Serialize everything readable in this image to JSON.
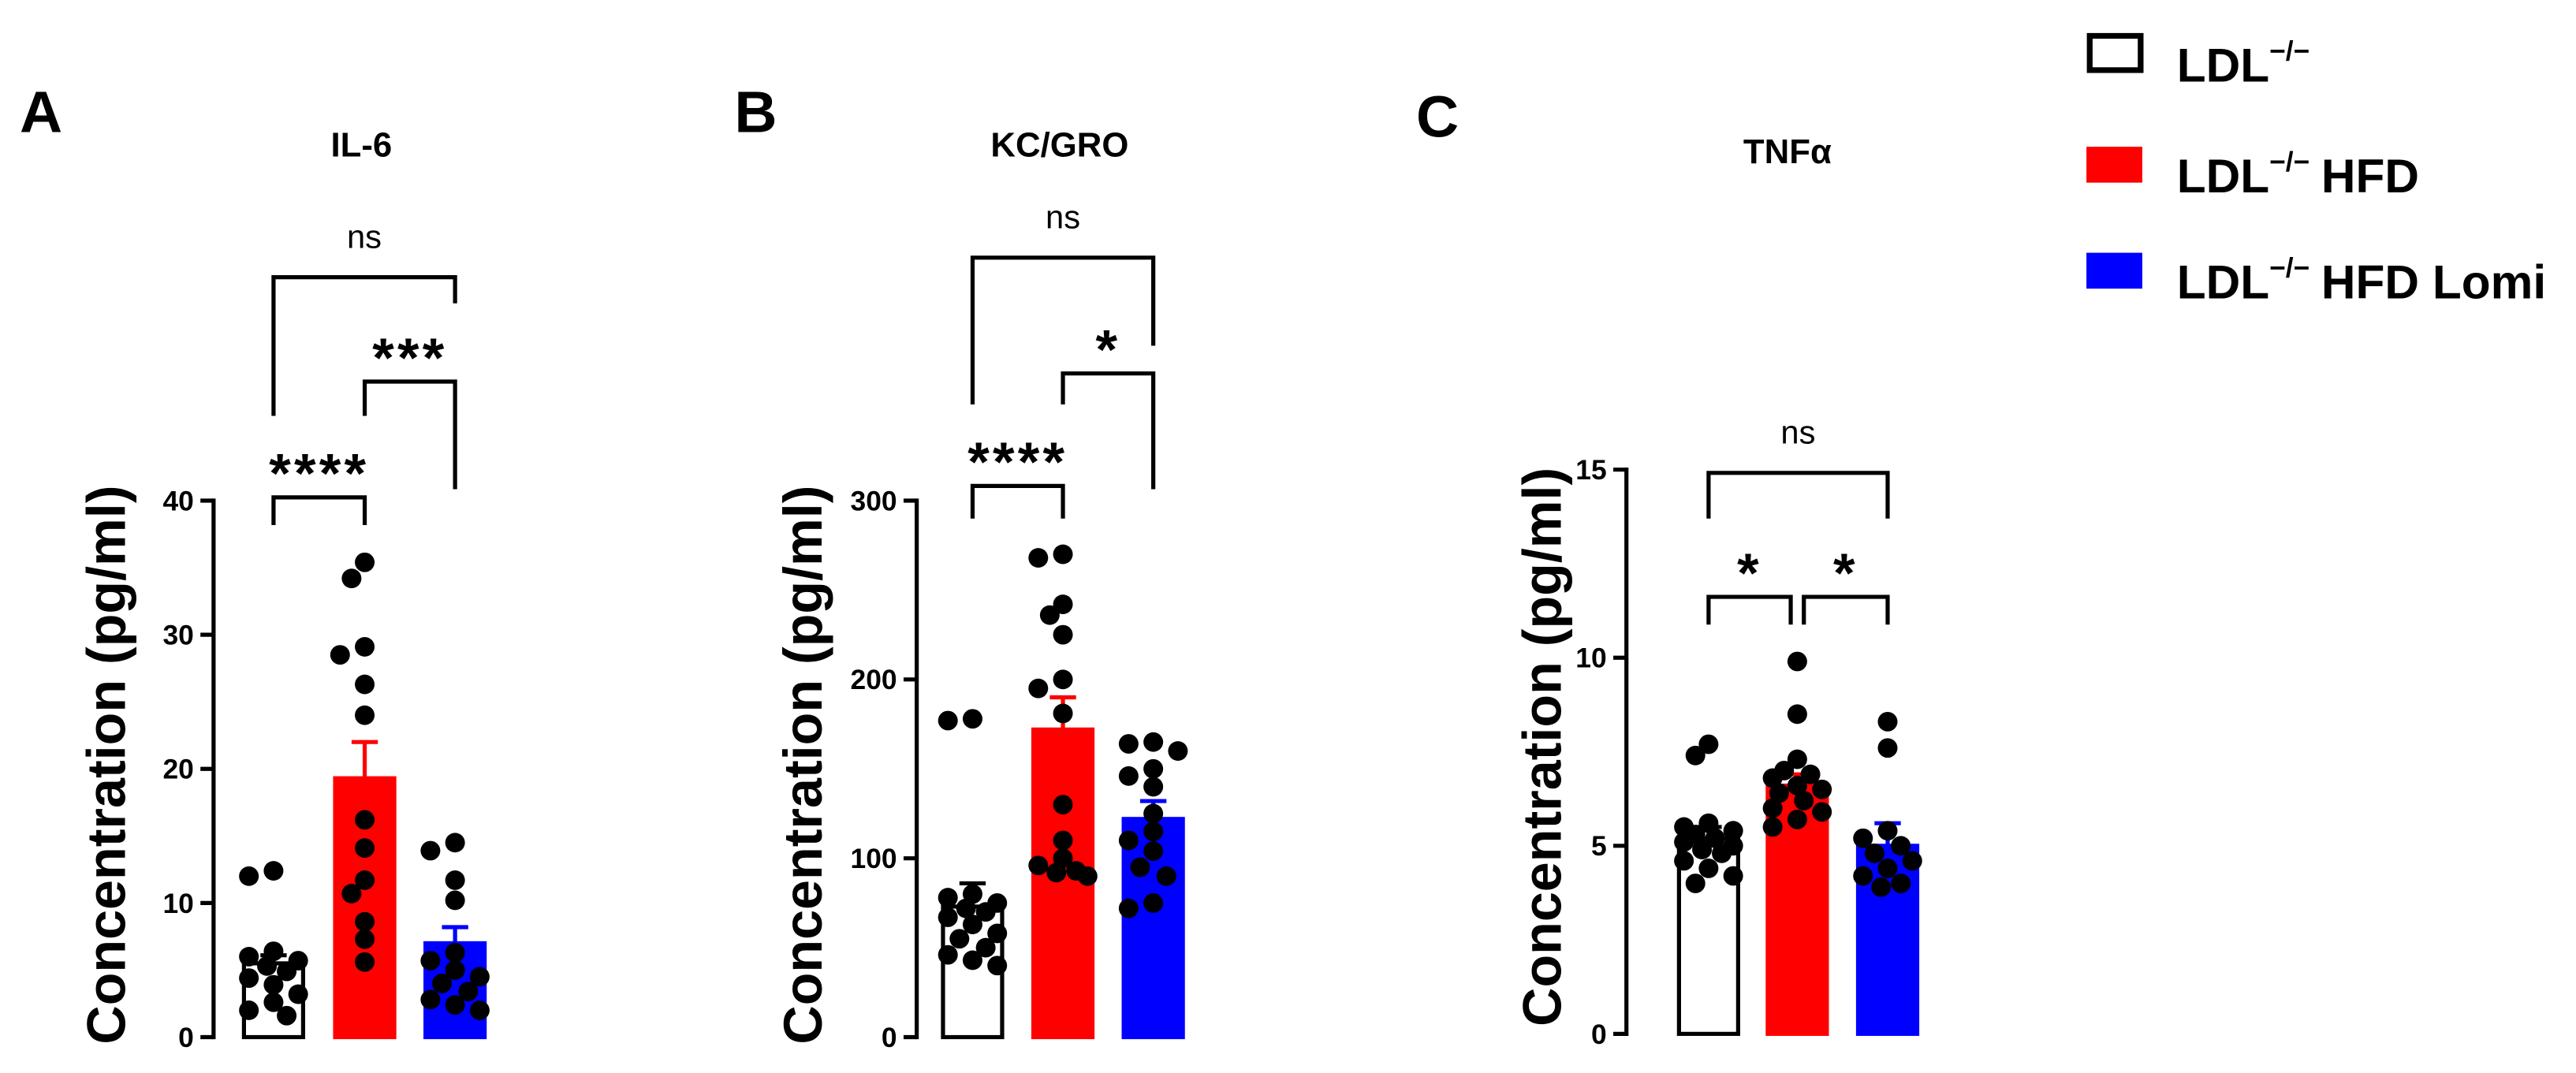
{
  "legend": [
    {
      "base": "LDL",
      "sup": "−/−",
      "color": "#ffffff"
    },
    {
      "base": "LDL",
      "sup": "−/−",
      "suffix": "HFD",
      "color": "#ff0000"
    },
    {
      "base": "LDL",
      "sup": "−/−",
      "suffix": "HFD Lomi",
      "color": "#0000ff"
    }
  ],
  "chart_data": [
    {
      "panel_label": "A",
      "type": "bar",
      "title": "IL-6",
      "ylabel": "Concentration (pg/ml)",
      "ylim": [
        0,
        40
      ],
      "yticks": [
        0,
        10,
        20,
        30,
        40
      ],
      "series": [
        {
          "group": 0,
          "fill": "#ffffff",
          "edge": "#000000",
          "mean": 5.5,
          "err": 0.6,
          "points": [
            12.4,
            12.0,
            6.4,
            6.0,
            5.7,
            5.3,
            4.9,
            4.4,
            3.9,
            3.2,
            2.6,
            2.0,
            1.6
          ]
        },
        {
          "group": 1,
          "fill": "#ff0000",
          "edge": "#ff0000",
          "mean": 19.3,
          "err": 2.7,
          "points": [
            35.4,
            34.2,
            29.1,
            28.5,
            26.3,
            24.0,
            16.2,
            14.1,
            11.7,
            10.7,
            8.6,
            7.3,
            5.6
          ]
        },
        {
          "group": 2,
          "fill": "#0000ff",
          "edge": "#0000ff",
          "mean": 7.0,
          "err": 1.2,
          "points": [
            14.5,
            13.9,
            11.7,
            10.2,
            6.3,
            5.7,
            5.0,
            4.5,
            4.0,
            3.4,
            2.8,
            2.4,
            2.0
          ]
        }
      ],
      "comparisons": [
        {
          "between": [
            0,
            2
          ],
          "label": "ns"
        },
        {
          "between": [
            1,
            2
          ],
          "label": "***"
        },
        {
          "between": [
            0,
            1
          ],
          "label": "****"
        }
      ]
    },
    {
      "panel_label": "B",
      "type": "bar",
      "title": "KC/GRO",
      "ylabel": "Concentration (pg/ml)",
      "ylim": [
        0,
        300
      ],
      "yticks": [
        0,
        100,
        200,
        300
      ],
      "series": [
        {
          "group": 0,
          "fill": "#ffffff",
          "edge": "#000000",
          "mean": 73,
          "err": 13,
          "points": [
            178,
            177,
            80,
            78,
            75,
            72,
            70,
            67,
            63,
            58,
            55,
            50,
            46,
            43,
            40
          ]
        },
        {
          "group": 1,
          "fill": "#ff0000",
          "edge": "#ff0000",
          "mean": 172,
          "err": 18,
          "points": [
            270,
            268,
            242,
            236,
            225,
            200,
            195,
            181,
            130,
            110,
            100,
            96,
            93,
            92,
            90
          ]
        },
        {
          "group": 2,
          "fill": "#0000ff",
          "edge": "#0000ff",
          "mean": 122,
          "err": 10,
          "points": [
            165,
            164,
            160,
            150,
            146,
            140,
            125,
            115,
            110,
            104,
            95,
            90,
            75,
            72
          ]
        }
      ],
      "comparisons": [
        {
          "between": [
            0,
            2
          ],
          "label": "ns"
        },
        {
          "between": [
            1,
            2
          ],
          "label": "*"
        },
        {
          "between": [
            0,
            1
          ],
          "label": "****"
        }
      ]
    },
    {
      "panel_label": "C",
      "type": "bar",
      "title": "TNFα",
      "ylabel": "Concentration (pg/ml)",
      "ylim": [
        0,
        15
      ],
      "yticks": [
        0,
        5,
        10,
        15
      ],
      "series": [
        {
          "group": 0,
          "fill": "#ffffff",
          "edge": "#000000",
          "mean": 5.2,
          "err": 0.3,
          "points": [
            7.7,
            7.4,
            5.6,
            5.5,
            5.4,
            5.3,
            5.2,
            5.1,
            5.0,
            4.9,
            4.8,
            4.6,
            4.4,
            4.2,
            4.0
          ]
        },
        {
          "group": 1,
          "fill": "#ff0000",
          "edge": "#ff0000",
          "mean": 6.6,
          "err": 0.3,
          "points": [
            9.9,
            8.5,
            7.3,
            7.0,
            6.9,
            6.8,
            6.6,
            6.5,
            6.4,
            6.2,
            6.0,
            5.9,
            5.7,
            5.5
          ]
        },
        {
          "group": 2,
          "fill": "#0000ff",
          "edge": "#0000ff",
          "mean": 5.0,
          "err": 0.6,
          "points": [
            8.3,
            7.6,
            5.4,
            5.2,
            5.0,
            4.8,
            4.6,
            4.4,
            4.2,
            4.0,
            3.9
          ]
        }
      ],
      "comparisons": [
        {
          "between": [
            0,
            2
          ],
          "label": "ns"
        },
        {
          "between": [
            0,
            1
          ],
          "label": "*"
        },
        {
          "between": [
            1,
            2
          ],
          "label": "*"
        }
      ]
    }
  ]
}
